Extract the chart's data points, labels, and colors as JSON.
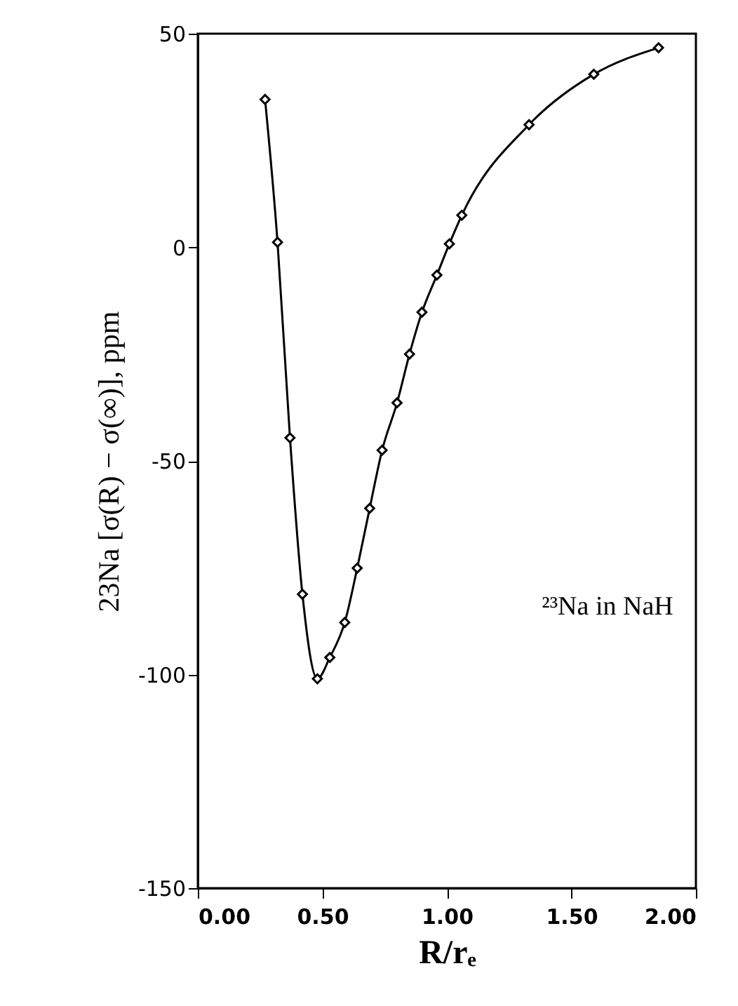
{
  "chart_data": {
    "type": "line",
    "xlabel": "R/rₑ",
    "ylabel": "23Na [σ(R) − σ(∞)], ppm",
    "annotations": [
      "²³Na in NaH"
    ],
    "x": [
      0.27,
      0.32,
      0.37,
      0.42,
      0.48,
      0.53,
      0.59,
      0.64,
      0.69,
      0.74,
      0.8,
      0.85,
      0.9,
      0.96,
      1.01,
      1.06,
      1.33,
      1.59,
      1.85
    ],
    "series": [
      {
        "color": "#000000",
        "values": [
          34.6,
          1.2,
          -44.6,
          -81.2,
          -101,
          -96,
          -87.8,
          -75.1,
          -61.1,
          -47.5,
          -36.4,
          -25.0,
          -15.2,
          -6.5,
          0.8,
          7.5,
          28.7,
          40.5,
          46.7
        ]
      }
    ],
    "xlim": [
      0,
      2
    ],
    "ylim": [
      -150,
      50
    ],
    "xticks": [
      {
        "value": 0,
        "label": "0.00"
      },
      {
        "value": 0.5,
        "label": "0.50"
      },
      {
        "value": 1,
        "label": "1.00"
      },
      {
        "value": 1.5,
        "label": "1.50"
      },
      {
        "value": 2,
        "label": "2.00"
      }
    ],
    "yticks": [
      -150,
      -100,
      -50,
      0,
      50
    ],
    "marker": "diamond",
    "line_style": "solid",
    "grid": false
  }
}
